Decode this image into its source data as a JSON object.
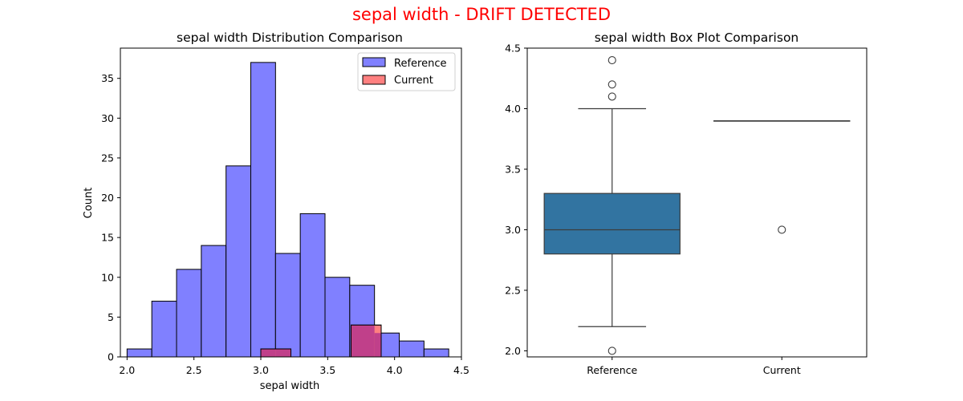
{
  "suptitle": "sepal width - DRIFT DETECTED",
  "colors": {
    "title": "#ff0000",
    "reference_bar": "#8080ff",
    "current_bar": "#ff8080",
    "overlap": "#c0408a",
    "box_fill": "#3274a1",
    "line": "#3c3c3c"
  },
  "chart_data": [
    {
      "type": "bar",
      "subtype": "histogram",
      "title": "sepal width Distribution Comparison",
      "xlabel": "sepal width",
      "ylabel": "Count",
      "xlim": [
        1.95,
        4.5
      ],
      "ylim": [
        0,
        38.8
      ],
      "xticks": [
        2.0,
        2.5,
        3.0,
        3.5,
        4.0,
        4.5
      ],
      "xtick_labels": [
        "2.0",
        "2.5",
        "3.0",
        "3.5",
        "4.0",
        "4.5"
      ],
      "yticks": [
        0,
        5,
        10,
        15,
        20,
        25,
        30,
        35
      ],
      "ytick_labels": [
        "0",
        "5",
        "10",
        "15",
        "20",
        "25",
        "30",
        "35"
      ],
      "legend_position": "upper right",
      "series": [
        {
          "name": "Reference",
          "bin_edges": [
            2.0,
            2.185,
            2.37,
            2.555,
            2.74,
            2.925,
            3.11,
            3.295,
            3.48,
            3.665,
            3.85,
            4.035,
            4.22,
            4.405
          ],
          "values": [
            1,
            7,
            11,
            14,
            24,
            37,
            13,
            18,
            10,
            9,
            3,
            2,
            1
          ]
        },
        {
          "name": "Current",
          "bin_edges": [
            3.0,
            3.225,
            3.45,
            3.675,
            3.9
          ],
          "values": [
            1,
            0,
            0,
            4
          ]
        }
      ]
    },
    {
      "type": "box",
      "title": "sepal width Box Plot Comparison",
      "xlabel": "",
      "ylabel": "",
      "categories": [
        "Reference",
        "Current"
      ],
      "ylim": [
        1.95,
        4.5
      ],
      "yticks": [
        2.0,
        2.5,
        3.0,
        3.5,
        4.0,
        4.5
      ],
      "ytick_labels": [
        "2.0",
        "2.5",
        "3.0",
        "3.5",
        "4.0",
        "4.5"
      ],
      "boxes": [
        {
          "name": "Reference",
          "whisker_low": 2.2,
          "q1": 2.8,
          "median": 3.0,
          "q3": 3.3,
          "whisker_high": 4.0,
          "outliers": [
            2.0,
            4.1,
            4.2,
            4.4
          ]
        },
        {
          "name": "Current",
          "whisker_low": 3.9,
          "q1": 3.9,
          "median": 3.9,
          "q3": 3.9,
          "whisker_high": 3.9,
          "outliers": [
            3.0
          ]
        }
      ]
    }
  ]
}
